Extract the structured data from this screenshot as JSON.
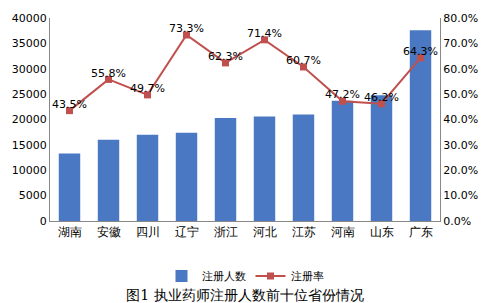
{
  "chart_data": {
    "type": "bar",
    "title": "图1 执业药师注册人数前十位省份情况",
    "categories": [
      "湖南",
      "安徽",
      "四川",
      "辽宁",
      "浙江",
      "河北",
      "江苏",
      "河南",
      "山东",
      "广东"
    ],
    "series": [
      {
        "name": "注册人数",
        "type": "bar",
        "color": "#4a78c2",
        "values": [
          13300,
          16000,
          17000,
          17400,
          20300,
          20600,
          21000,
          23700,
          24800,
          37600
        ]
      },
      {
        "name": "注册率",
        "type": "line",
        "axis": "y2",
        "color": "#c0504d",
        "marker": "square",
        "line_style": "solid",
        "data_labels": true,
        "values": [
          43.5,
          55.8,
          49.7,
          73.3,
          62.3,
          71.4,
          60.7,
          47.2,
          46.2,
          64.3
        ],
        "value_labels": [
          "43.5%",
          "55.8%",
          "49.7%",
          "73.3%",
          "62.3%",
          "71.4%",
          "60.7%",
          "47.2%",
          "46.2%",
          "64.3%"
        ]
      }
    ],
    "ylim": [
      0,
      40000
    ],
    "yticks": [
      0,
      5000,
      10000,
      15000,
      20000,
      25000,
      30000,
      35000,
      40000
    ],
    "y2lim": [
      0,
      80
    ],
    "y2ticks": [
      {
        "value": 0,
        "label": "0.0%"
      },
      {
        "value": 10,
        "label": "10.0%"
      },
      {
        "value": 20,
        "label": "20.0%"
      },
      {
        "value": 30,
        "label": "30.0%"
      },
      {
        "value": 40,
        "label": "40.0%"
      },
      {
        "value": 50,
        "label": "50.0%"
      },
      {
        "value": 60,
        "label": "60.0%"
      },
      {
        "value": 70,
        "label": "70.0%"
      },
      {
        "value": 80,
        "label": "80.0%"
      }
    ],
    "grid": false,
    "legend": "bottom"
  }
}
